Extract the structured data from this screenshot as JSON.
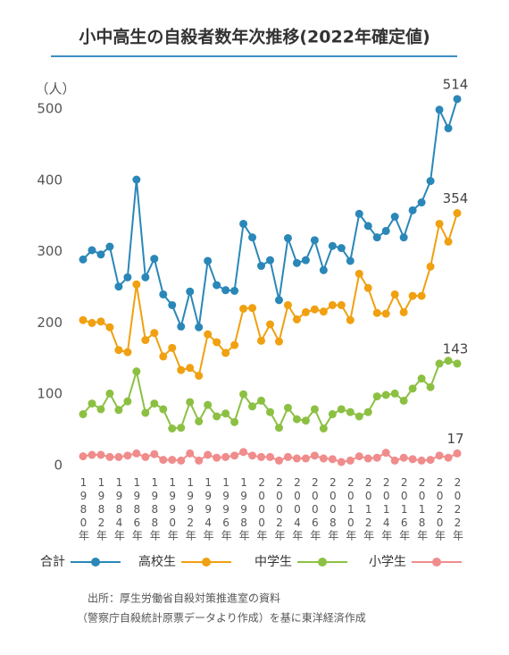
{
  "chart_data": {
    "type": "line",
    "title": "小中高生の自殺者数年次推移(2022年確定値)",
    "y_label": "（人）",
    "categories": [
      "1980年",
      null,
      "1982年",
      null,
      "1984年",
      null,
      "1986年",
      null,
      "1988年",
      null,
      "1990年",
      null,
      "1992年",
      null,
      "1994年",
      null,
      "1996年",
      null,
      "1998年",
      null,
      "2000年",
      null,
      "2002年",
      null,
      "2004年",
      null,
      "2006年",
      null,
      "2008年",
      null,
      "2010年",
      null,
      "2012年",
      null,
      "2014年",
      null,
      "2016年",
      null,
      "2018年",
      null,
      "2020年",
      null,
      "2022年"
    ],
    "series": [
      {
        "name": "合計",
        "color": "#2a87b8",
        "values": [
          289,
          302,
          296,
          307,
          251,
          264,
          401,
          264,
          290,
          240,
          225,
          195,
          244,
          194,
          287,
          253,
          246,
          245,
          339,
          320,
          280,
          288,
          232,
          319,
          284,
          288,
          316,
          274,
          308,
          305,
          287,
          353,
          336,
          320,
          329,
          349,
          320,
          358,
          369,
          399,
          499,
          473,
          514
        ]
      },
      {
        "name": "高校生",
        "color": "#f0a010",
        "values": [
          204,
          200,
          202,
          194,
          162,
          159,
          254,
          176,
          186,
          153,
          165,
          134,
          137,
          126,
          184,
          173,
          158,
          169,
          220,
          221,
          175,
          198,
          174,
          225,
          205,
          215,
          219,
          216,
          225,
          225,
          204,
          269,
          249,
          214,
          213,
          240,
          215,
          238,
          238,
          279,
          339,
          314,
          354
        ]
      },
      {
        "name": "中学生",
        "color": "#8cc043",
        "values": [
          72,
          87,
          79,
          101,
          78,
          90,
          132,
          74,
          87,
          79,
          52,
          53,
          89,
          62,
          85,
          69,
          73,
          61,
          100,
          83,
          91,
          75,
          53,
          81,
          65,
          63,
          79,
          52,
          72,
          79,
          75,
          69,
          75,
          97,
          99,
          101,
          91,
          108,
          122,
          110,
          143,
          147,
          143
        ]
      },
      {
        "name": "小学生",
        "color": "#f08c8c",
        "values": [
          13,
          15,
          15,
          12,
          12,
          14,
          17,
          12,
          16,
          8,
          8,
          7,
          17,
          7,
          15,
          11,
          12,
          14,
          19,
          14,
          12,
          12,
          7,
          12,
          10,
          10,
          14,
          10,
          9,
          5,
          7,
          13,
          10,
          11,
          18,
          7,
          11,
          9,
          7,
          8,
          14,
          11,
          17
        ]
      }
    ],
    "ylim": [
      0,
      500
    ],
    "yticks": [
      0,
      100,
      200,
      300,
      400,
      500
    ],
    "source": [
      "出所：厚生労働省自殺対策推進室の資料",
      "（警察庁自殺統計原票データより作成）を基に東洋経済作成"
    ]
  }
}
